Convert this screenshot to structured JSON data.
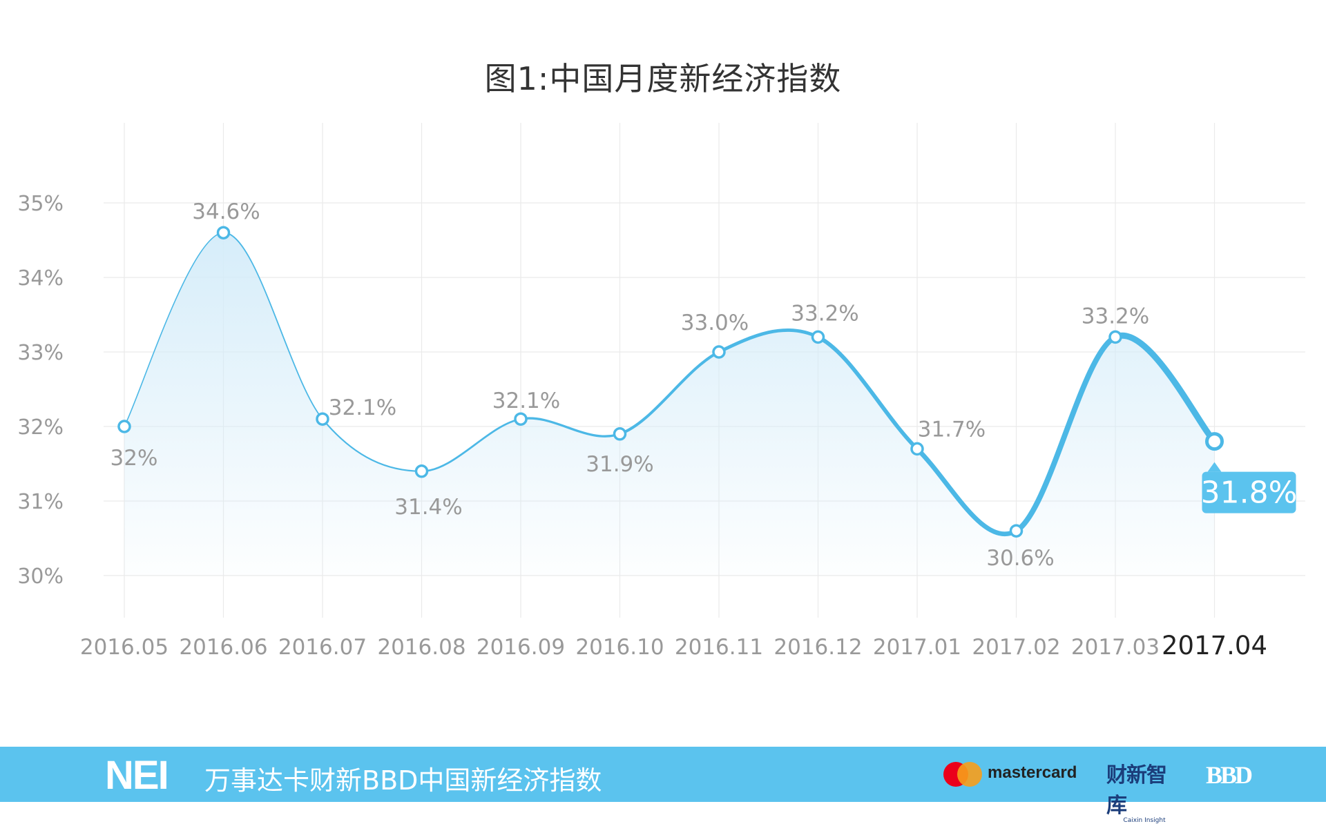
{
  "chart_data": {
    "type": "line",
    "title": "图1:中国月度新经济指数",
    "categories": [
      "2016.05",
      "2016.06",
      "2016.07",
      "2016.08",
      "2016.09",
      "2016.10",
      "2016.11",
      "2016.12",
      "2017.01",
      "2017.02",
      "2017.03",
      "2017.04"
    ],
    "series": [
      {
        "values": [
          32.0,
          34.6,
          32.1,
          31.4,
          32.1,
          31.9,
          33.0,
          33.2,
          31.7,
          30.6,
          33.2,
          31.8
        ],
        "labels": [
          "32%",
          "34.6%",
          "32.1%",
          "31.4%",
          "32.1%",
          "31.9%",
          "33.0%",
          "33.2%",
          "31.7%",
          "30.6%",
          "33.2%",
          "31.8%"
        ]
      }
    ],
    "y_ticks": [
      "35%",
      "34%",
      "33%",
      "32%",
      "31%",
      "30%"
    ],
    "ylim": [
      30,
      35
    ],
    "xlabel": "",
    "ylabel": "",
    "grid": true,
    "highlight_last": true,
    "colors": {
      "line": "#4cb8e6",
      "fill_top": "#d4ecf9",
      "grid": "#eaeaea",
      "label": "#999999",
      "highlight_box": "#5bc3ee"
    }
  },
  "footer": {
    "brand": "NEI",
    "text": "万事达卡财新BBD中国新经济指数",
    "mastercard": "mastercard",
    "caixin_cn": "财新智库",
    "caixin_en": "Caixin Insight",
    "bbd": "BBD",
    "background": "#5bc3ee"
  }
}
